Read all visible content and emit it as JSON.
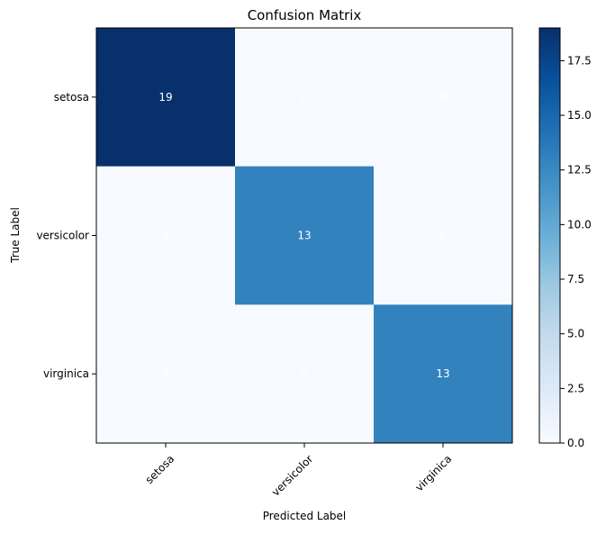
{
  "chart_data": {
    "type": "heatmap",
    "title": "Confusion Matrix",
    "xlabel": "Predicted Label",
    "ylabel": "True Label",
    "x_categories": [
      "setosa",
      "versicolor",
      "virginica"
    ],
    "y_categories": [
      "setosa",
      "versicolor",
      "virginica"
    ],
    "values": [
      [
        19,
        0,
        0
      ],
      [
        0,
        13,
        0
      ],
      [
        0,
        0,
        13
      ]
    ],
    "colormap": "Blues",
    "colorbar": {
      "min": 0,
      "max": 19,
      "ticks": [
        0.0,
        2.5,
        5.0,
        7.5,
        10.0,
        12.5,
        15.0,
        17.5
      ],
      "tick_labels": [
        "0.0",
        "2.5",
        "5.0",
        "7.5",
        "10.0",
        "12.5",
        "15.0",
        "17.5"
      ]
    },
    "cell_text_color": "#ffffff",
    "colors": {
      "low": "#f7fbff",
      "high": "#08306b"
    }
  }
}
